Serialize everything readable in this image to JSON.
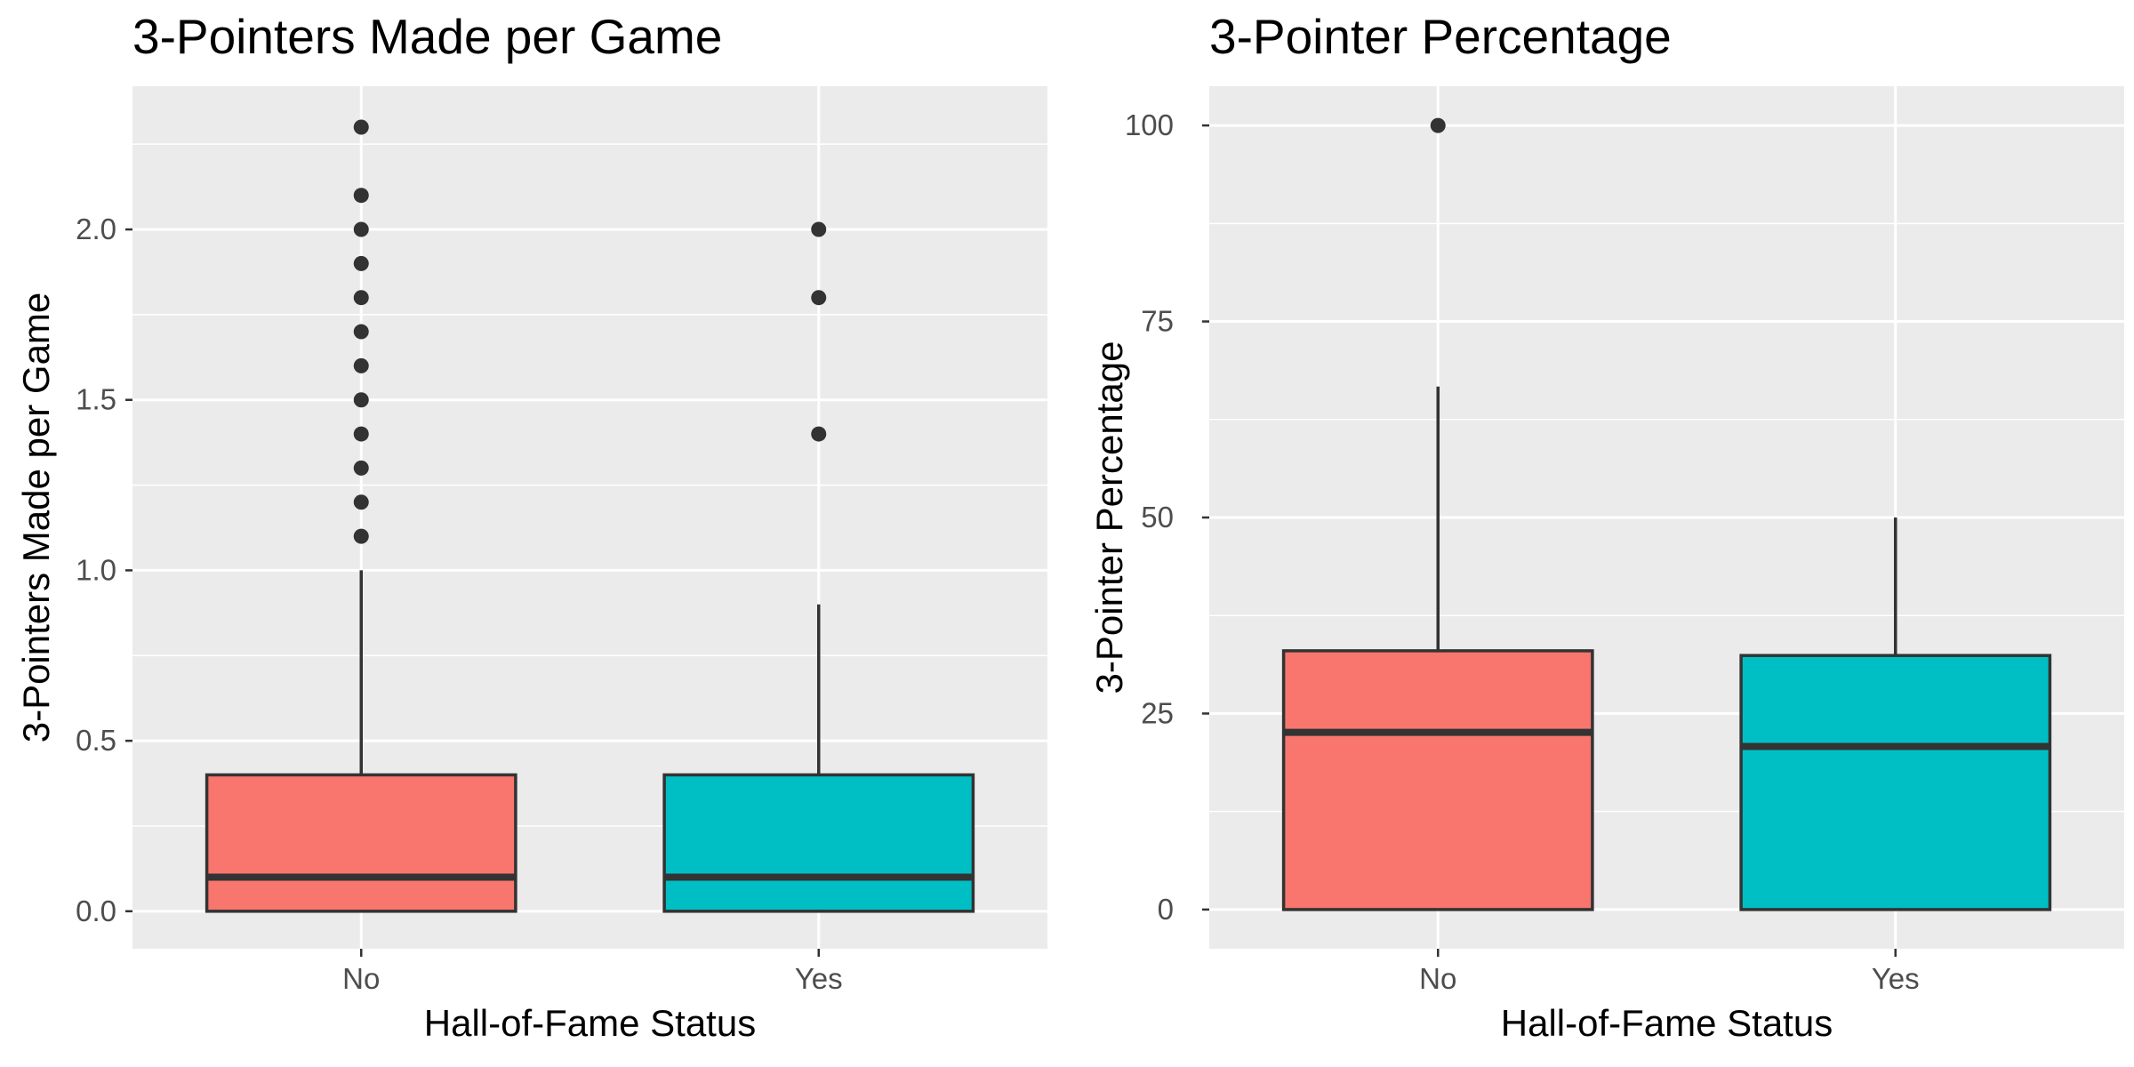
{
  "chart_data": [
    {
      "type": "boxplot",
      "title": "3-Pointers Made per Game",
      "xlabel": "Hall-of-Fame Status",
      "ylabel": "3-Pointers Made per Game",
      "categories": [
        "No",
        "Yes"
      ],
      "ylim": [
        -0.11,
        2.42
      ],
      "yticks": [
        0.0,
        0.5,
        1.0,
        1.5,
        2.0
      ],
      "ytick_labels": [
        "0.0",
        "0.5",
        "1.0",
        "1.5",
        "2.0"
      ],
      "grid": true,
      "boxes": [
        {
          "category": "No",
          "min": 0.0,
          "q1": 0.0,
          "median": 0.1,
          "q3": 0.4,
          "max": 1.0,
          "outliers": [
            1.1,
            1.2,
            1.3,
            1.4,
            1.5,
            1.6,
            1.7,
            1.8,
            1.9,
            2.0,
            2.1,
            2.3
          ]
        },
        {
          "category": "Yes",
          "min": 0.0,
          "q1": 0.0,
          "median": 0.1,
          "q3": 0.4,
          "max": 0.9,
          "outliers": [
            1.4,
            1.8,
            2.0
          ]
        }
      ]
    },
    {
      "type": "boxplot",
      "title": "3-Pointer Percentage",
      "xlabel": "Hall-of-Fame Status",
      "ylabel": "3-Pointer Percentage",
      "categories": [
        "No",
        "Yes"
      ],
      "ylim": [
        -5,
        105
      ],
      "yticks": [
        0,
        25,
        50,
        75,
        100
      ],
      "ytick_labels": [
        "0",
        "25",
        "50",
        "75",
        "100"
      ],
      "grid": true,
      "boxes": [
        {
          "category": "No",
          "min": 0,
          "q1": 0,
          "median": 22.6,
          "q3": 33.0,
          "max": 66.7,
          "outliers": [
            100
          ]
        },
        {
          "category": "Yes",
          "min": 0,
          "q1": 0,
          "median": 20.8,
          "q3": 32.4,
          "max": 50.0,
          "outliers": []
        }
      ]
    }
  ],
  "colors": {
    "panel_background": "#EBEBEB",
    "grid": "#FFFFFF",
    "box_outline": "#333333",
    "tick_label": "#4D4D4D",
    "fill_no": "#F8766D",
    "fill_yes": "#00BFC4"
  }
}
